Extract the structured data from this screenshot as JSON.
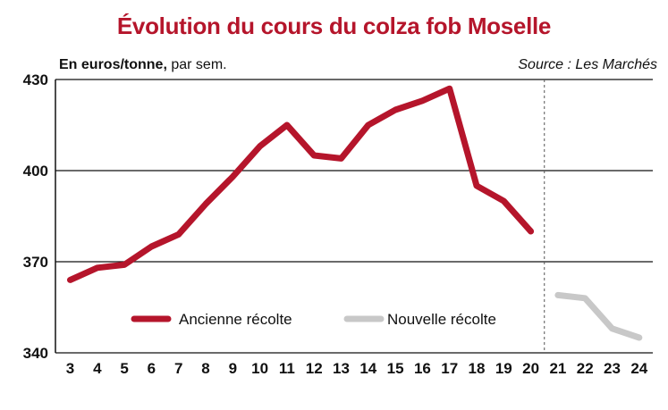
{
  "header": {
    "title": "Évolution du cours du colza fob Moselle",
    "unit_bold": "En euros/tonne,",
    "unit_rest": " par sem.",
    "source": "Source : Les Marchés"
  },
  "colors": {
    "title": "#b5152b",
    "ancienne": "#b5152b",
    "nouvelle": "#c8c8c8",
    "grid": "#111111"
  },
  "chart_data": {
    "type": "line",
    "title": "Évolution du cours du colza fob Moselle",
    "ylabel": "En euros/tonne, par sem.",
    "xlabel": "",
    "x": [
      3,
      4,
      5,
      6,
      7,
      8,
      9,
      10,
      11,
      12,
      13,
      14,
      15,
      16,
      17,
      18,
      19,
      20,
      21,
      22,
      23,
      24
    ],
    "ylim": [
      340,
      430
    ],
    "yticks": [
      340,
      370,
      400,
      430
    ],
    "grid": true,
    "legend": "bottom-left",
    "series": [
      {
        "name": "Ancienne récolte",
        "color": "#b5152b",
        "x": [
          3,
          4,
          5,
          6,
          7,
          8,
          9,
          10,
          11,
          12,
          13,
          14,
          15,
          16,
          17,
          18,
          19,
          20
        ],
        "values": [
          364,
          368,
          369,
          375,
          379,
          389,
          398,
          408,
          415,
          405,
          404,
          415,
          420,
          423,
          427,
          395,
          390,
          380
        ]
      },
      {
        "name": "Nouvelle récolte",
        "color": "#c8c8c8",
        "x": [
          21,
          22,
          23,
          24
        ],
        "values": [
          359,
          358,
          348,
          345
        ]
      }
    ],
    "divider_after_x": 20
  }
}
